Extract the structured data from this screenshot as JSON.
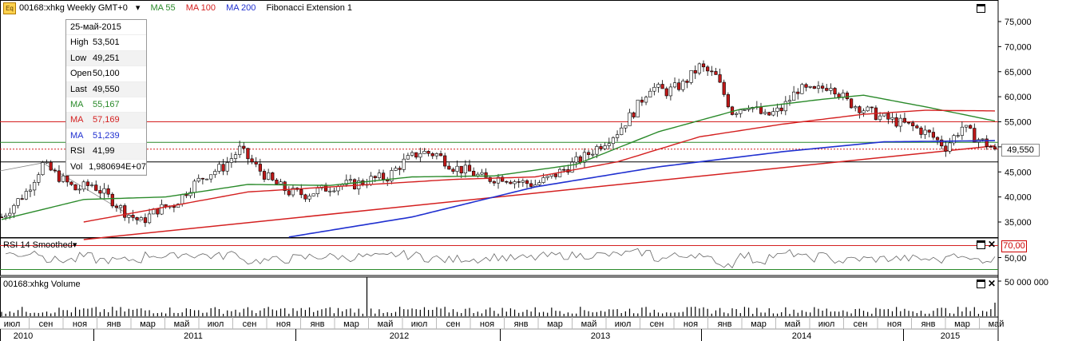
{
  "header": {
    "symbol_badge": "Eq",
    "symbol": "00168:xhkg Weekly GMT+0",
    "ma55": "MA 55",
    "ma100": "MA 100",
    "ma200": "MA 200",
    "fib": "Fibonacci Extension 1"
  },
  "info_panel": {
    "date": "25-май-2015",
    "rows": [
      {
        "label": "High",
        "value": "53,501",
        "color": "#000000"
      },
      {
        "label": "Low",
        "value": "49,251",
        "color": "#000000"
      },
      {
        "label": "Open",
        "value": "50,100",
        "color": "#000000"
      },
      {
        "label": "Last",
        "value": "49,550",
        "color": "#000000"
      },
      {
        "label": "MA",
        "value": "55,167",
        "color": "#2a8a2a"
      },
      {
        "label": "MA",
        "value": "57,169",
        "color": "#d42020"
      },
      {
        "label": "MA",
        "value": "51,239",
        "color": "#2030d0"
      },
      {
        "label": "RSI",
        "value": "41,99",
        "color": "#000000"
      },
      {
        "label": "Vol",
        "value": "1,980694E+07",
        "color": "#000000"
      }
    ]
  },
  "price_label": "49,550",
  "rsi": {
    "title": "RSI 14 Smoothed",
    "level_label": "70,00",
    "mid_label": "50,00"
  },
  "volume": {
    "title": "00168:xhkg Volume",
    "axis_label": "50 000 000"
  },
  "colors": {
    "ma55": "#2a8a2a",
    "ma100": "#d42020",
    "ma200": "#2030d0",
    "up": "#ffffff",
    "down": "#c01818"
  },
  "chart_data": {
    "type": "candlestick",
    "y_axis": {
      "ticks": [
        "35,000",
        "40,000",
        "45,000",
        "50,000",
        "55,000",
        "60,000",
        "65,000",
        "70,000",
        "75,000"
      ],
      "ylim": [
        32000,
        78000
      ]
    },
    "x_axis": {
      "months": [
        "июл",
        "сен",
        "ноя",
        "янв",
        "мар",
        "май",
        "июл",
        "сен",
        "ноя",
        "янв",
        "мар",
        "май",
        "июл",
        "сен",
        "ноя",
        "янв",
        "мар",
        "май",
        "июл",
        "сен",
        "ноя",
        "янв",
        "мар",
        "май",
        "июл",
        "сен",
        "ноя",
        "янв",
        "мар",
        "май"
      ],
      "years": [
        "2010",
        "2011",
        "2012",
        "2013",
        "2014",
        "2015"
      ]
    },
    "close_path": [
      [
        0,
        36000
      ],
      [
        6,
        41000
      ],
      [
        10,
        46500
      ],
      [
        14,
        44000
      ],
      [
        18,
        41500
      ],
      [
        22,
        42500
      ],
      [
        26,
        40000
      ],
      [
        30,
        37000
      ],
      [
        34,
        35000
      ],
      [
        38,
        37500
      ],
      [
        42,
        38500
      ],
      [
        46,
        42000
      ],
      [
        50,
        44500
      ],
      [
        54,
        46000
      ],
      [
        58,
        49500
      ],
      [
        62,
        46000
      ],
      [
        66,
        43000
      ],
      [
        70,
        41000
      ],
      [
        74,
        40500
      ],
      [
        78,
        41500
      ],
      [
        82,
        42500
      ],
      [
        86,
        42500
      ],
      [
        90,
        43500
      ],
      [
        94,
        44000
      ],
      [
        98,
        47000
      ],
      [
        102,
        49000
      ],
      [
        106,
        48500
      ],
      [
        110,
        46000
      ],
      [
        114,
        45000
      ],
      [
        118,
        43500
      ],
      [
        122,
        44000
      ],
      [
        126,
        43000
      ],
      [
        130,
        42500
      ],
      [
        134,
        44000
      ],
      [
        138,
        46000
      ],
      [
        142,
        48000
      ],
      [
        146,
        50500
      ],
      [
        150,
        53000
      ],
      [
        154,
        57000
      ],
      [
        158,
        62000
      ],
      [
        162,
        61000
      ],
      [
        166,
        62500
      ],
      [
        170,
        66000
      ],
      [
        174,
        64000
      ],
      [
        178,
        57000
      ],
      [
        182,
        58500
      ],
      [
        186,
        56000
      ],
      [
        190,
        57500
      ],
      [
        194,
        61500
      ],
      [
        198,
        61000
      ],
      [
        202,
        62500
      ],
      [
        206,
        59000
      ],
      [
        210,
        57500
      ],
      [
        214,
        56000
      ],
      [
        218,
        55000
      ],
      [
        222,
        54000
      ],
      [
        226,
        52500
      ],
      [
        230,
        50000
      ],
      [
        234,
        54000
      ],
      [
        237,
        52000
      ],
      [
        242,
        49550
      ]
    ],
    "ma55_path": [
      [
        0,
        35500
      ],
      [
        20,
        39500
      ],
      [
        40,
        40000
      ],
      [
        60,
        42500
      ],
      [
        80,
        42300
      ],
      [
        100,
        44000
      ],
      [
        120,
        44200
      ],
      [
        140,
        46500
      ],
      [
        160,
        53000
      ],
      [
        180,
        57500
      ],
      [
        200,
        59500
      ],
      [
        210,
        60300
      ],
      [
        225,
        58000
      ],
      [
        242,
        55167
      ]
    ],
    "ma100_path": [
      [
        20,
        35000
      ],
      [
        60,
        41000
      ],
      [
        90,
        42500
      ],
      [
        110,
        43500
      ],
      [
        130,
        44000
      ],
      [
        150,
        47000
      ],
      [
        170,
        52000
      ],
      [
        190,
        54500
      ],
      [
        210,
        56500
      ],
      [
        225,
        57300
      ],
      [
        242,
        57169
      ]
    ],
    "ma200_path": [
      [
        70,
        32000
      ],
      [
        100,
        36000
      ],
      [
        130,
        42000
      ],
      [
        160,
        46000
      ],
      [
        190,
        49000
      ],
      [
        215,
        51000
      ],
      [
        242,
        51239
      ]
    ],
    "fib_channel": {
      "x0": 20,
      "y0": 31500,
      "x1": 242,
      "y1": 50200
    },
    "horizontal_levels": [
      55000,
      50900,
      49550,
      47000
    ],
    "rsi_ylim": [
      20,
      80
    ],
    "rsi_level": 70,
    "volume_spike_week": 89
  }
}
